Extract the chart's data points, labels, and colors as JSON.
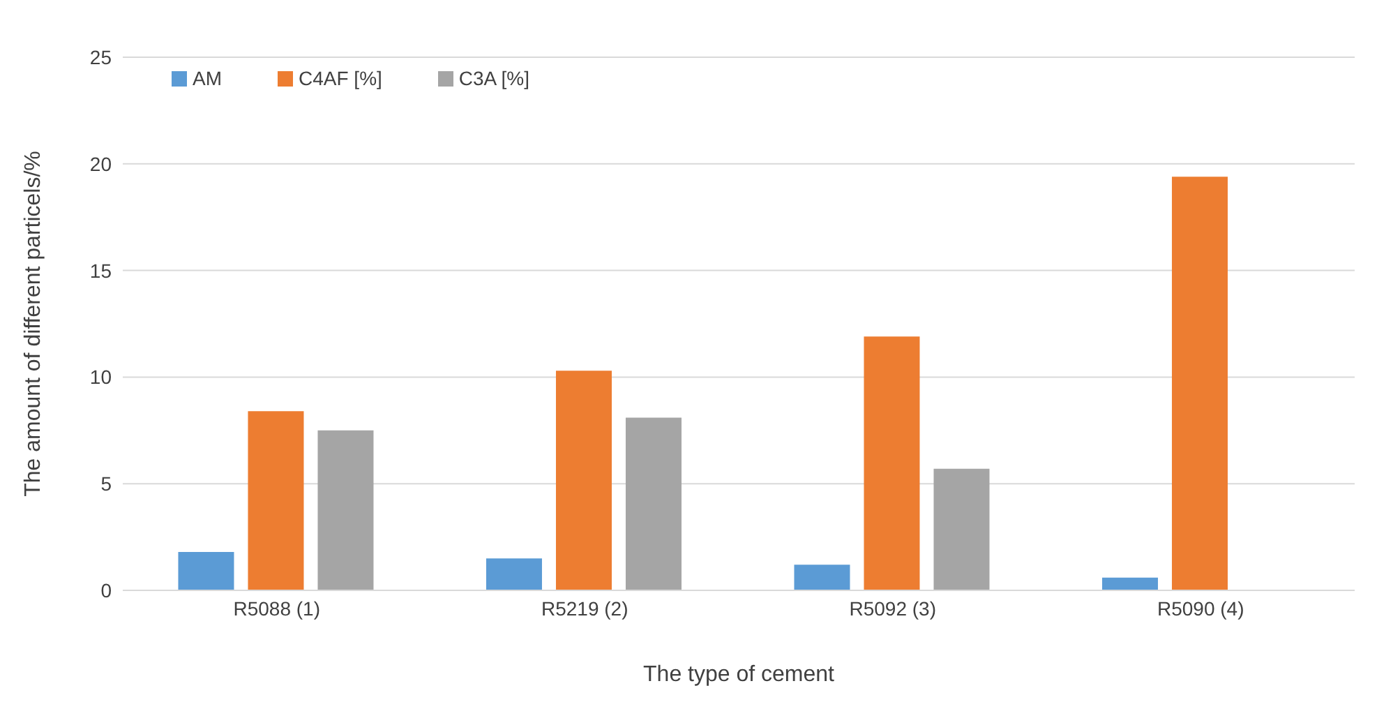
{
  "chart_data": {
    "type": "bar",
    "xlabel": "The type of cement",
    "ylabel": "The amount of different particels/%",
    "categories": [
      "R5088 (1)",
      "R5219 (2)",
      "R5092 (3)",
      "R5090 (4)"
    ],
    "series": [
      {
        "name": "AM",
        "color": "#5b9bd5",
        "values": [
          1.8,
          1.5,
          1.2,
          0.6
        ]
      },
      {
        "name": "C4AF [%]",
        "color": "#ed7d31",
        "values": [
          8.4,
          10.3,
          11.9,
          19.4
        ]
      },
      {
        "name": "C3A [%]",
        "color": "#a5a5a5",
        "values": [
          7.5,
          8.1,
          5.7,
          null
        ]
      }
    ],
    "ylim": [
      0,
      25
    ],
    "yticks": [
      0,
      5,
      10,
      15,
      20,
      25
    ],
    "grid": "y",
    "legend": "top left"
  }
}
